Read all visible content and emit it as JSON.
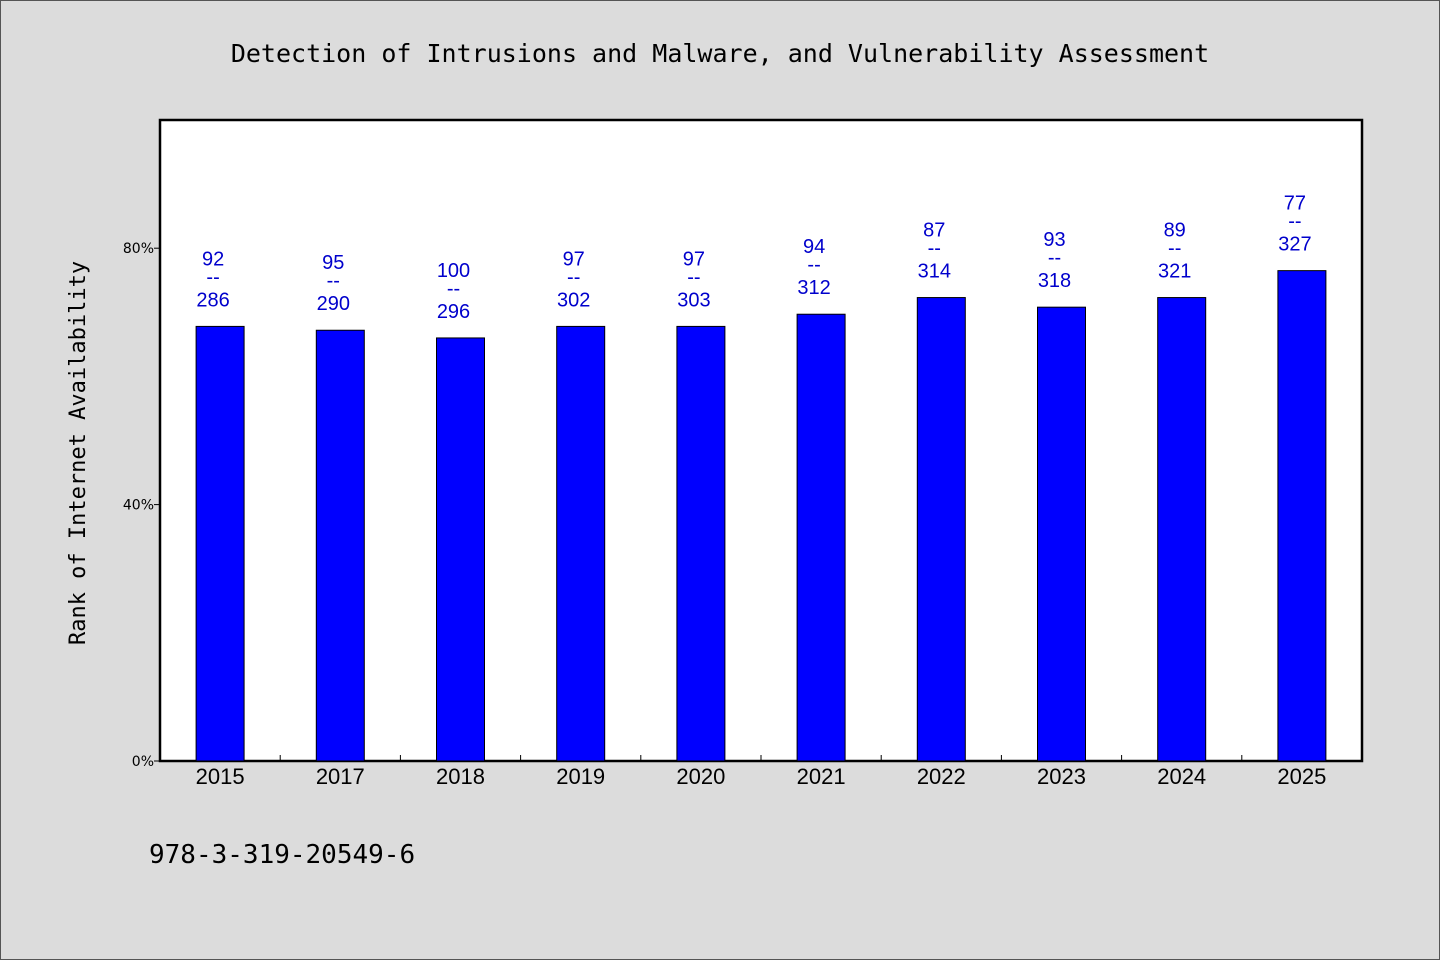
{
  "chart_data": {
    "type": "bar",
    "title": "Detection of Intrusions and Malware, and Vulnerability Assessment",
    "xlabel": "",
    "ylabel": "Rank of Internet Availability",
    "categories": [
      "2015",
      "2017",
      "2018",
      "2019",
      "2020",
      "2021",
      "2022",
      "2023",
      "2024",
      "2025"
    ],
    "values": [
      67.8,
      67.2,
      66.0,
      67.8,
      67.8,
      69.7,
      72.3,
      70.8,
      72.3,
      76.5
    ],
    "value_unit": "%",
    "ylim": [
      0,
      100
    ],
    "yticks": [
      {
        "value": 0,
        "label": "0%"
      },
      {
        "value": 40,
        "label": "40%"
      },
      {
        "value": 80,
        "label": "80%"
      }
    ],
    "data_labels": [
      {
        "top": "92",
        "sep": "--",
        "bottom": "286"
      },
      {
        "top": "95",
        "sep": "--",
        "bottom": "290"
      },
      {
        "top": "100",
        "sep": "--",
        "bottom": "296"
      },
      {
        "top": "97",
        "sep": "--",
        "bottom": "302"
      },
      {
        "top": "97",
        "sep": "--",
        "bottom": "303"
      },
      {
        "top": "94",
        "sep": "--",
        "bottom": "312"
      },
      {
        "top": "87",
        "sep": "--",
        "bottom": "314"
      },
      {
        "top": "93",
        "sep": "--",
        "bottom": "318"
      },
      {
        "top": "89",
        "sep": "--",
        "bottom": "321"
      },
      {
        "top": "77",
        "sep": "--",
        "bottom": "327"
      }
    ],
    "bar_color": "#0000ff",
    "label_color": "#0000cc",
    "background_color": "#dcdcdc",
    "plot_background": "#ffffff",
    "grid": false,
    "legend": "none"
  },
  "footer": {
    "isbn": "978-3-319-20549-6"
  }
}
